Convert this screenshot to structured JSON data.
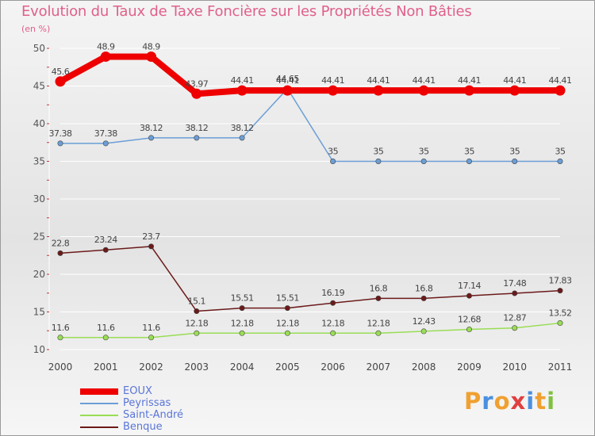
{
  "title": "Evolution du Taux de Taxe Foncière sur les Propriétés Non Bâties",
  "unit": "(en %)",
  "logo": {
    "letters": [
      "P",
      "r",
      "o",
      "x",
      "i",
      "t",
      "i"
    ],
    "colors": [
      "#f0a030",
      "#4a90e0",
      "#f0a030",
      "#e04040",
      "#4a90e0",
      "#f0a030",
      "#80c040"
    ]
  },
  "chart_data": {
    "type": "line",
    "title": "Evolution du Taux de Taxe Foncière sur les Propriétés Non Bâties",
    "ylabel": "(en %)",
    "xlabel": "",
    "categories": [
      "2000",
      "2001",
      "2002",
      "2003",
      "2004",
      "2005",
      "2006",
      "2007",
      "2008",
      "2009",
      "2010",
      "2011"
    ],
    "ylim": [
      10,
      50
    ],
    "yticks": [
      "10",
      "15",
      "20",
      "25",
      "30",
      "35",
      "40",
      "45",
      "50"
    ],
    "legend_position": "bottom-left",
    "series": [
      {
        "name": "EOUX",
        "color": "#ee0000",
        "values": [
          45.6,
          48.9,
          48.9,
          43.97,
          44.41,
          44.41,
          44.41,
          44.41,
          44.41,
          44.41,
          44.41,
          44.41
        ],
        "labels": [
          "45.6",
          "48.9",
          "48.9",
          "43.97",
          "44.41",
          "44.41",
          "44.41",
          "44.41",
          "44.41",
          "44.41",
          "44.41",
          "44.41"
        ]
      },
      {
        "name": "Peyrissas",
        "color": "#6b9ed6",
        "values": [
          37.38,
          37.38,
          38.12,
          38.12,
          38.12,
          44.65,
          35,
          35,
          35,
          35,
          35,
          35
        ],
        "labels": [
          "37.38",
          "37.38",
          "38.12",
          "38.12",
          "38.12",
          "44.65",
          "35",
          "35",
          "35",
          "35",
          "35",
          "35"
        ]
      },
      {
        "name": "Saint-André",
        "color": "#99dd55",
        "values": [
          11.6,
          11.6,
          11.6,
          12.18,
          12.18,
          12.18,
          12.18,
          12.18,
          12.43,
          12.68,
          12.87,
          13.52
        ],
        "labels": [
          "11.6",
          "11.6",
          "11.6",
          "12.18",
          "12.18",
          "12.18",
          "12.18",
          "12.18",
          "12.43",
          "12.68",
          "12.87",
          "13.52"
        ]
      },
      {
        "name": "Benque",
        "color": "#6b1a1a",
        "values": [
          22.8,
          23.24,
          23.7,
          15.1,
          15.51,
          15.51,
          16.19,
          16.8,
          16.8,
          17.14,
          17.48,
          17.83
        ],
        "labels": [
          "22.8",
          "23.24",
          "23.7",
          "15.1",
          "15.51",
          "15.51",
          "16.19",
          "16.8",
          "16.8",
          "17.14",
          "17.48",
          "17.83"
        ]
      }
    ]
  }
}
